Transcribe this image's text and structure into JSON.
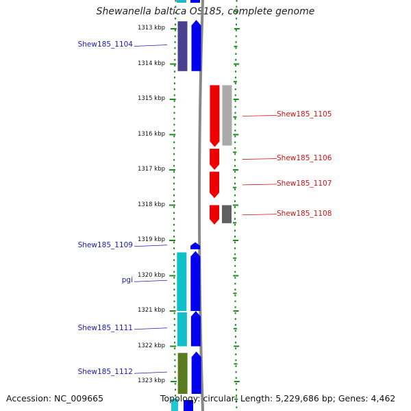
{
  "header": {
    "title": "Shewanella baltica OS185, complete genome"
  },
  "footer": {
    "accession": "Accession: NC_009665",
    "topology": "Topology: circular; Length: 5,229,686 bp; Genes: 4,462"
  },
  "colors": {
    "backbone": "#888888",
    "tick": "#1a8a1a",
    "label_left": "#1a1ab0",
    "label_right": "#d01010"
  },
  "axis": {
    "unit": "kbp",
    "ticks": [
      {
        "label": "1313 kbp",
        "kbp": 1313
      },
      {
        "label": "1314 kbp",
        "kbp": 1314
      },
      {
        "label": "1315 kbp",
        "kbp": 1315
      },
      {
        "label": "1316 kbp",
        "kbp": 1316
      },
      {
        "label": "1317 kbp",
        "kbp": 1317
      },
      {
        "label": "1318 kbp",
        "kbp": 1318
      },
      {
        "label": "1319 kbp",
        "kbp": 1319
      },
      {
        "label": "1320 kbp",
        "kbp": 1320
      },
      {
        "label": "1321 kbp",
        "kbp": 1321
      },
      {
        "label": "1322 kbp",
        "kbp": 1322
      },
      {
        "label": "1323 kbp",
        "kbp": 1323
      }
    ]
  },
  "genes": [
    {
      "id": "Shew185_1104",
      "label": "Shew185_1104",
      "strand": "left",
      "start": 1312.75,
      "end": 1314.2,
      "color": "#0000ee",
      "cog_color": "#4a4090"
    },
    {
      "id": "Shew185_1105",
      "label": "Shew185_1105",
      "strand": "right",
      "start": 1314.6,
      "end": 1316.35,
      "color": "#ee0000",
      "cog_color": "#aaaaaa"
    },
    {
      "id": "Shew185_1106",
      "label": "Shew185_1106",
      "strand": "right",
      "start": 1316.4,
      "end": 1317.0,
      "color": "#ee0000",
      "cog_color": ""
    },
    {
      "id": "Shew185_1107",
      "label": "Shew185_1107",
      "strand": "right",
      "start": 1317.05,
      "end": 1317.8,
      "color": "#ee0000",
      "cog_color": ""
    },
    {
      "id": "Shew185_1108",
      "label": "Shew185_1108",
      "strand": "right",
      "start": 1318.0,
      "end": 1318.55,
      "color": "#ee0000",
      "cog_color": "#606060"
    },
    {
      "id": "Shew185_1109",
      "label": "Shew185_1109",
      "strand": "left",
      "start": 1319.05,
      "end": 1319.25,
      "color": "#0000ee",
      "cog_color": ""
    },
    {
      "id": "pgi",
      "label": "pgi",
      "strand": "left",
      "start": 1319.3,
      "end": 1321.0,
      "color": "#0000ee",
      "cog_color": "#10c0c8"
    },
    {
      "id": "Shew185_1111",
      "label": "Shew185_1111",
      "strand": "left",
      "start": 1321.0,
      "end": 1322.0,
      "color": "#0000ee",
      "cog_color": "#10c0c8"
    },
    {
      "id": "Shew185_1112",
      "label": "Shew185_1112",
      "strand": "left",
      "start": 1322.15,
      "end": 1323.35,
      "color": "#0000ee",
      "cog_color": "#5a7a20"
    }
  ]
}
